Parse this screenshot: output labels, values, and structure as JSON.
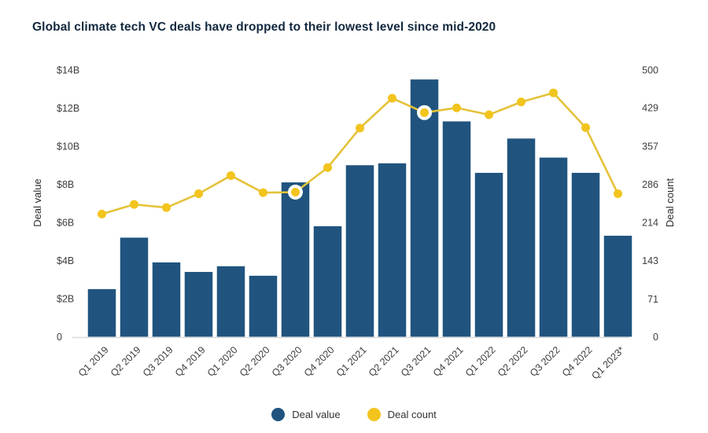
{
  "title": "Global climate tech VC deals have dropped to their lowest level since mid-2020",
  "colors": {
    "bar": "#20547f",
    "line": "#e4c239",
    "point": "#f2c41d",
    "point_ring": "#ffffff",
    "baseline": "#dcdcdc",
    "tick_text": "#3e3e3e",
    "axis_title_text": "#2b2b2b",
    "title_text": "#13293f"
  },
  "legend": {
    "items": [
      {
        "label": "Deal value",
        "color": "#20547f"
      },
      {
        "label": "Deal count",
        "color": "#f2c41d"
      }
    ],
    "position": "bottom-center"
  },
  "chart_data": {
    "type": "combo-bar-line",
    "title": "Global climate tech VC deals have dropped to their lowest level since mid-2020",
    "categories": [
      "Q1 2019",
      "Q2 2019",
      "Q3 2019",
      "Q4 2019",
      "Q1 2020",
      "Q2 2020",
      "Q3 2020",
      "Q4 2020",
      "Q1 2021",
      "Q2 2021",
      "Q3 2021",
      "Q4 2021",
      "Q1 2022",
      "Q2 2022",
      "Q3 2022",
      "Q4 2022",
      "Q1 2023*"
    ],
    "series": [
      {
        "name": "Deal value",
        "type": "bar",
        "axis": "left",
        "unit": "USD billions",
        "values": [
          2.5,
          5.2,
          3.9,
          3.4,
          3.7,
          3.2,
          8.1,
          5.8,
          9.0,
          9.1,
          13.5,
          11.3,
          8.6,
          10.4,
          9.4,
          8.6,
          5.3
        ]
      },
      {
        "name": "Deal count",
        "type": "line",
        "axis": "right",
        "unit": "deals",
        "values": [
          230,
          248,
          242,
          268,
          302,
          270,
          271,
          317,
          391,
          447,
          420,
          429,
          416,
          440,
          457,
          392,
          268
        ],
        "highlighted_point_indices": [
          6,
          10
        ]
      }
    ],
    "left_axis": {
      "label": "Deal value",
      "tick_labels": [
        "$14B",
        "$12B",
        "$10B",
        "$8B",
        "$6B",
        "$4B",
        "$2B",
        "0"
      ],
      "tick_values": [
        14,
        12,
        10,
        8,
        6,
        4,
        2,
        0
      ],
      "range": [
        0,
        14
      ]
    },
    "right_axis": {
      "label": "Deal count",
      "tick_labels": [
        "500",
        "429",
        "357",
        "286",
        "214",
        "143",
        "71",
        "0"
      ],
      "tick_values": [
        500,
        429,
        357,
        286,
        214,
        143,
        71,
        0
      ],
      "range": [
        0,
        500
      ]
    },
    "grid": false,
    "legend_position": "bottom"
  }
}
